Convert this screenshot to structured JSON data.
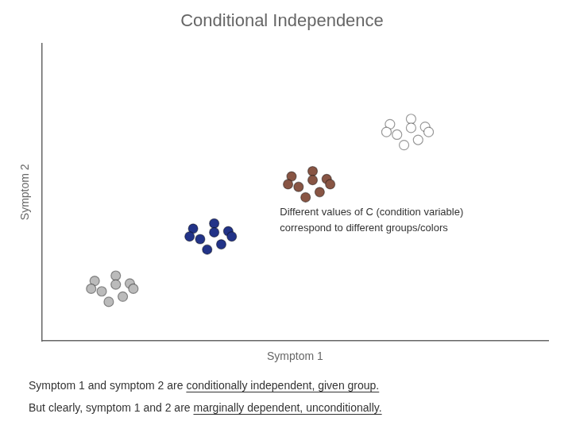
{
  "chart_data": {
    "type": "scatter",
    "title": "Conditional Independence",
    "xlabel": "Symptom 1",
    "ylabel": "Symptom 2",
    "annotations": [
      "Different values of C (condition variable)",
      "correspond to different groups/colors"
    ],
    "caption": [
      {
        "text": "Symptom 1 and symptom 2 are ",
        "underlined": "conditionally independent, given group."
      },
      {
        "text": "But clearly, symptom 1 and 2 are ",
        "underlined": "marginally dependent, unconditionally."
      }
    ],
    "series": [
      {
        "color": "#bbbbbb",
        "values": [
          [
            1.55,
            1.65
          ],
          [
            1.85,
            1.75
          ],
          [
            2.05,
            1.6
          ],
          [
            1.65,
            1.45
          ],
          [
            1.95,
            1.35
          ],
          [
            1.75,
            1.25
          ],
          [
            1.5,
            1.5
          ],
          [
            2.1,
            1.5
          ],
          [
            1.85,
            1.58
          ]
        ]
      },
      {
        "color": "#223388",
        "values": [
          [
            2.95,
            2.65
          ],
          [
            3.25,
            2.75
          ],
          [
            3.45,
            2.6
          ],
          [
            3.05,
            2.45
          ],
          [
            3.35,
            2.35
          ],
          [
            3.15,
            2.25
          ],
          [
            2.9,
            2.5
          ],
          [
            3.5,
            2.5
          ],
          [
            3.25,
            2.58
          ]
        ]
      },
      {
        "color": "#885544",
        "values": [
          [
            4.35,
            3.65
          ],
          [
            4.65,
            3.75
          ],
          [
            4.85,
            3.6
          ],
          [
            4.45,
            3.45
          ],
          [
            4.75,
            3.35
          ],
          [
            4.55,
            3.25
          ],
          [
            4.3,
            3.5
          ],
          [
            4.9,
            3.5
          ],
          [
            4.65,
            3.58
          ]
        ]
      },
      {
        "color": "#ffffff",
        "values": [
          [
            5.75,
            4.65
          ],
          [
            6.05,
            4.75
          ],
          [
            6.25,
            4.6
          ],
          [
            5.85,
            4.45
          ],
          [
            6.15,
            4.35
          ],
          [
            5.95,
            4.25
          ],
          [
            5.7,
            4.5
          ],
          [
            6.3,
            4.5
          ],
          [
            6.05,
            4.58
          ]
        ]
      }
    ],
    "xlim": [
      0.8,
      8.0
    ],
    "ylim": [
      0.5,
      6.2
    ],
    "tick_labels": false,
    "grid": false
  }
}
